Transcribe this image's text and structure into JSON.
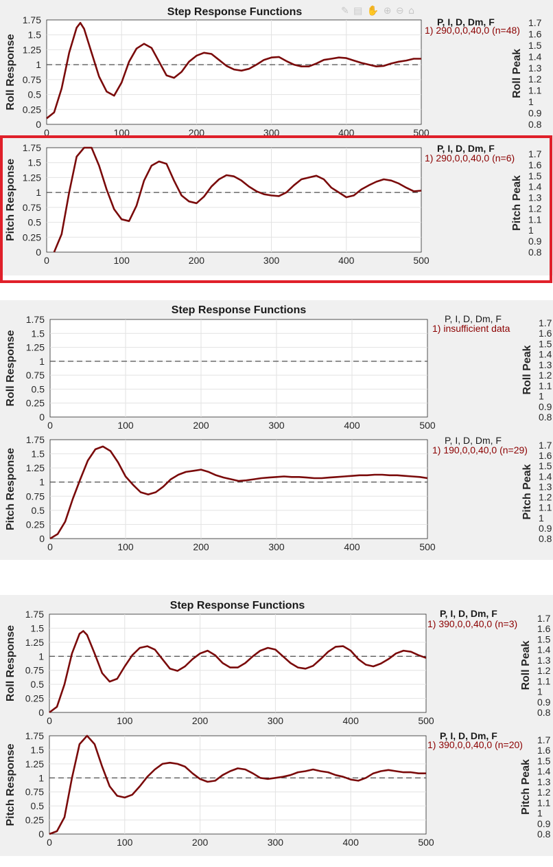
{
  "figures": [
    {
      "title": "Step Response Functions",
      "panels": [
        {
          "ylabel": "Roll Response",
          "peaklabel": "Roll Peak",
          "leghead": "P, I, D, Dm, F",
          "entry": "1) 290,0,0,40,0  (n=48)"
        },
        {
          "ylabel": "Pitch Response",
          "peaklabel": "Pitch Peak",
          "leghead": "P, I, D, Dm, F",
          "entry": "1) 290,0,0,40,0  (n=6)"
        }
      ]
    },
    {
      "title": "Step Response Functions",
      "panels": [
        {
          "ylabel": "Roll Response",
          "peaklabel": "Roll Peak",
          "leghead": "P, I, D, Dm, F",
          "entry": "1) insufficient data"
        },
        {
          "ylabel": "Pitch Response",
          "peaklabel": "Pitch Peak",
          "leghead": "P, I, D, Dm, F",
          "entry": "1) 190,0,0,40,0  (n=29)"
        }
      ]
    },
    {
      "title": "Step Response Functions",
      "panels": [
        {
          "ylabel": "Roll Response",
          "peaklabel": "Roll Peak",
          "leghead": "P, I, D, Dm, F",
          "entry": "1) 390,0,0,40,0  (n=3)"
        },
        {
          "ylabel": "Pitch Response",
          "peaklabel": "Pitch Peak",
          "leghead": "P, I, D, Dm, F",
          "entry": "1) 390,0,0,40,0  (n=20)"
        }
      ]
    }
  ],
  "axes": {
    "x_ticks": [
      "0",
      "100",
      "200",
      "300",
      "400",
      "500"
    ],
    "y_ticks": [
      "0",
      "0.25",
      "0.5",
      "0.75",
      "1",
      "1.25",
      "1.5",
      "1.75"
    ],
    "peak_ticks": [
      "0.8",
      "0.9",
      "1",
      "1.1",
      "1.2",
      "1.3",
      "1.4",
      "1.5",
      "1.6",
      "1.7"
    ]
  },
  "colors": {
    "line": "#7a0a0a",
    "legend_text": "#8b0000",
    "panel_bg": "#f0f0f0",
    "highlight": "#e0202a"
  },
  "chart_data": [
    {
      "figure": 1,
      "panel": "roll",
      "type": "line",
      "xlim": [
        0,
        500
      ],
      "ylim": [
        0,
        1.75
      ],
      "reference_y": 1,
      "grid": true,
      "x": [
        0,
        10,
        20,
        30,
        40,
        45,
        50,
        60,
        70,
        80,
        90,
        100,
        110,
        120,
        130,
        140,
        150,
        160,
        170,
        180,
        190,
        200,
        210,
        220,
        230,
        240,
        250,
        260,
        270,
        280,
        290,
        300,
        310,
        320,
        330,
        340,
        350,
        360,
        370,
        380,
        390,
        400,
        410,
        420,
        430,
        440,
        450,
        460,
        470,
        480,
        490,
        500
      ],
      "y": [
        0.1,
        0.2,
        0.6,
        1.2,
        1.62,
        1.7,
        1.6,
        1.2,
        0.8,
        0.55,
        0.48,
        0.7,
        1.05,
        1.27,
        1.35,
        1.28,
        1.05,
        0.82,
        0.78,
        0.88,
        1.05,
        1.15,
        1.2,
        1.18,
        1.08,
        0.98,
        0.92,
        0.9,
        0.93,
        1.0,
        1.08,
        1.12,
        1.13,
        1.06,
        1.0,
        0.97,
        0.97,
        1.02,
        1.08,
        1.1,
        1.12,
        1.11,
        1.07,
        1.03,
        1.0,
        0.97,
        0.98,
        1.02,
        1.05,
        1.07,
        1.1,
        1.1
      ]
    },
    {
      "figure": 1,
      "panel": "pitch",
      "type": "line",
      "xlim": [
        0,
        500
      ],
      "ylim": [
        0,
        1.75
      ],
      "reference_y": 1,
      "grid": true,
      "x": [
        10,
        20,
        30,
        40,
        50,
        60,
        70,
        80,
        90,
        100,
        110,
        120,
        130,
        140,
        150,
        160,
        170,
        180,
        190,
        200,
        210,
        220,
        230,
        240,
        250,
        260,
        270,
        280,
        290,
        300,
        310,
        320,
        330,
        340,
        350,
        360,
        370,
        380,
        390,
        400,
        410,
        420,
        430,
        440,
        450,
        460,
        470,
        480,
        490,
        500
      ],
      "y": [
        0,
        0.3,
        1.0,
        1.6,
        1.85,
        1.82,
        1.45,
        1.05,
        0.72,
        0.55,
        0.52,
        0.78,
        1.2,
        1.45,
        1.52,
        1.48,
        1.2,
        0.95,
        0.85,
        0.82,
        0.93,
        1.1,
        1.22,
        1.29,
        1.27,
        1.2,
        1.1,
        1.02,
        0.97,
        0.95,
        0.94,
        1.0,
        1.12,
        1.22,
        1.25,
        1.28,
        1.22,
        1.08,
        1.0,
        0.92,
        0.95,
        1.05,
        1.12,
        1.18,
        1.22,
        1.2,
        1.15,
        1.08,
        1.02,
        1.03
      ]
    },
    {
      "figure": 2,
      "panel": "roll",
      "type": "line",
      "xlim": [
        0,
        500
      ],
      "ylim": [
        0,
        1.75
      ],
      "reference_y": 1,
      "grid": true,
      "x": [],
      "y": []
    },
    {
      "figure": 2,
      "panel": "pitch",
      "type": "line",
      "xlim": [
        0,
        500
      ],
      "ylim": [
        0,
        1.75
      ],
      "reference_y": 1,
      "grid": true,
      "x": [
        0,
        10,
        20,
        30,
        40,
        50,
        60,
        70,
        80,
        90,
        100,
        110,
        120,
        130,
        140,
        150,
        160,
        170,
        180,
        190,
        200,
        210,
        220,
        230,
        240,
        250,
        260,
        270,
        280,
        290,
        300,
        310,
        320,
        330,
        340,
        350,
        360,
        370,
        380,
        390,
        400,
        410,
        420,
        430,
        440,
        450,
        460,
        470,
        480,
        490,
        500
      ],
      "y": [
        0,
        0.08,
        0.3,
        0.7,
        1.05,
        1.38,
        1.58,
        1.63,
        1.55,
        1.35,
        1.1,
        0.95,
        0.82,
        0.78,
        0.82,
        0.92,
        1.05,
        1.13,
        1.18,
        1.2,
        1.22,
        1.18,
        1.12,
        1.08,
        1.05,
        1.02,
        1.03,
        1.05,
        1.07,
        1.08,
        1.09,
        1.1,
        1.09,
        1.09,
        1.08,
        1.07,
        1.07,
        1.08,
        1.09,
        1.1,
        1.11,
        1.12,
        1.12,
        1.13,
        1.13,
        1.12,
        1.12,
        1.11,
        1.1,
        1.09,
        1.07
      ]
    },
    {
      "figure": 3,
      "panel": "roll",
      "type": "line",
      "xlim": [
        0,
        500
      ],
      "ylim": [
        0,
        1.75
      ],
      "reference_y": 1,
      "grid": true,
      "x": [
        0,
        10,
        20,
        30,
        40,
        45,
        50,
        60,
        70,
        80,
        90,
        100,
        110,
        120,
        130,
        140,
        150,
        160,
        170,
        180,
        190,
        200,
        210,
        220,
        230,
        240,
        250,
        260,
        270,
        280,
        290,
        300,
        310,
        320,
        330,
        340,
        350,
        360,
        370,
        380,
        390,
        400,
        410,
        420,
        430,
        440,
        450,
        460,
        470,
        480,
        490,
        500
      ],
      "y": [
        0,
        0.1,
        0.5,
        1.05,
        1.4,
        1.45,
        1.38,
        1.05,
        0.7,
        0.55,
        0.6,
        0.82,
        1.02,
        1.15,
        1.18,
        1.12,
        0.95,
        0.78,
        0.74,
        0.82,
        0.95,
        1.05,
        1.1,
        1.02,
        0.88,
        0.8,
        0.8,
        0.88,
        1.0,
        1.1,
        1.15,
        1.12,
        1.0,
        0.88,
        0.8,
        0.78,
        0.83,
        0.95,
        1.08,
        1.17,
        1.18,
        1.1,
        0.95,
        0.85,
        0.82,
        0.87,
        0.95,
        1.05,
        1.1,
        1.08,
        1.02,
        0.97
      ]
    },
    {
      "figure": 3,
      "panel": "pitch",
      "type": "line",
      "xlim": [
        0,
        500
      ],
      "ylim": [
        0,
        1.75
      ],
      "reference_y": 1,
      "grid": true,
      "x": [
        0,
        10,
        20,
        30,
        40,
        50,
        60,
        70,
        80,
        90,
        100,
        110,
        120,
        130,
        140,
        150,
        160,
        170,
        180,
        190,
        200,
        210,
        220,
        230,
        240,
        250,
        260,
        270,
        280,
        290,
        300,
        310,
        320,
        330,
        340,
        350,
        360,
        370,
        380,
        390,
        400,
        410,
        420,
        430,
        440,
        450,
        460,
        470,
        480,
        490,
        500
      ],
      "y": [
        0,
        0.05,
        0.3,
        1.0,
        1.6,
        1.85,
        1.6,
        1.2,
        0.85,
        0.68,
        0.65,
        0.7,
        0.85,
        1.02,
        1.15,
        1.25,
        1.27,
        1.25,
        1.2,
        1.08,
        0.98,
        0.93,
        0.95,
        1.05,
        1.12,
        1.17,
        1.15,
        1.08,
        1.0,
        0.98,
        1.0,
        1.02,
        1.05,
        1.1,
        1.12,
        1.15,
        1.12,
        1.1,
        1.05,
        1.02,
        0.97,
        0.95,
        1.0,
        1.08,
        1.12,
        1.14,
        1.12,
        1.1,
        1.1,
        1.08,
        1.08
      ]
    }
  ]
}
